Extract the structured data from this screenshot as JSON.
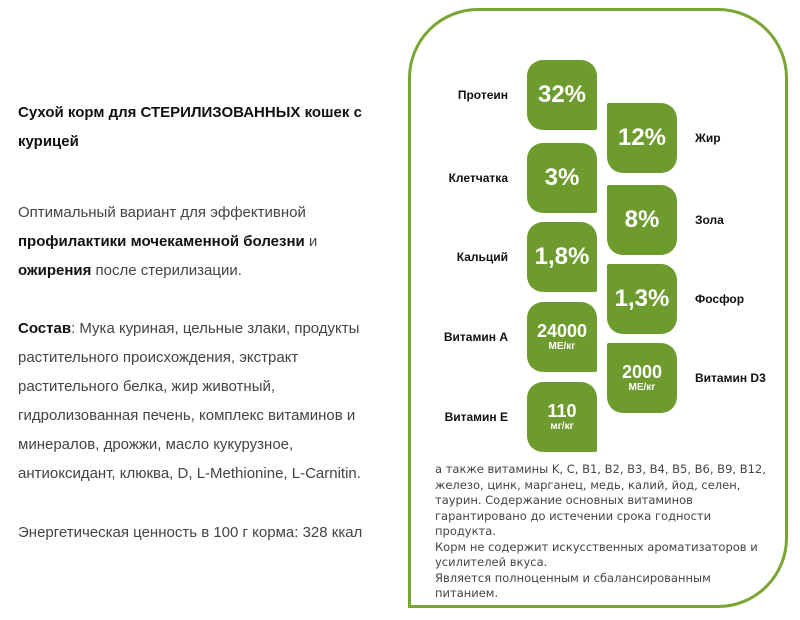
{
  "title": "Сухой корм для СТЕРИЛИЗОВАННЫХ кошек с курицей",
  "paragraphs": [
    [
      {
        "text": "Оптимальный вариант для эффективной ",
        "bold": false
      },
      {
        "text": "профилактики мочекаменной болезни",
        "bold": true
      },
      {
        "text": " и ",
        "bold": false
      },
      {
        "text": "ожирения",
        "bold": true
      },
      {
        "text": " после стерилизации.",
        "bold": false
      }
    ],
    [
      {
        "text": "Состав",
        "bold": true
      },
      {
        "text": ": Мука куриная, цельные злаки, продукты растительного происхождения, экстракт растительного белка, жир животный, гидролизованная печень, комплекс витаминов и минералов, дрожжи, масло кукурузное, антиоксидант, клюква, D, L-Methionine, L-Carnitin.",
        "bold": false
      }
    ],
    [
      {
        "text": "Энергетическая ценность в 100 г корма: 328 ккал",
        "bold": false
      }
    ]
  ],
  "nutrients_left": [
    {
      "label": "Протеин",
      "value": "32%"
    },
    {
      "label": "Клетчатка",
      "value": "3%"
    },
    {
      "label": "Кальций",
      "value": "1,8%"
    },
    {
      "label": "Витамин А",
      "value": "24000",
      "unit": "МЕ/кг"
    },
    {
      "label": "Витамин Е",
      "value": "110",
      "unit": "мг/кг"
    }
  ],
  "nutrients_right": [
    {
      "label": "Жир",
      "value": "12%"
    },
    {
      "label": "Зола",
      "value": "8%"
    },
    {
      "label": "Фосфор",
      "value": "1,3%"
    },
    {
      "label": "Витамин D3",
      "value": "2000",
      "unit": "МЕ/кг"
    }
  ],
  "notes": [
    "а также витамины K, C, B1, B2, B3, B4, B5, B6, B9, B12, железо, цинк, марганец, медь, калий, йод, селен, таурин. Содержание основных витаминов гарантировано до истечении срока годности продукта.",
    "Корм не содержит искусственных ароматизаторов и усилителей вкуса.",
    "Является полноценным и сбалансированным питанием."
  ]
}
